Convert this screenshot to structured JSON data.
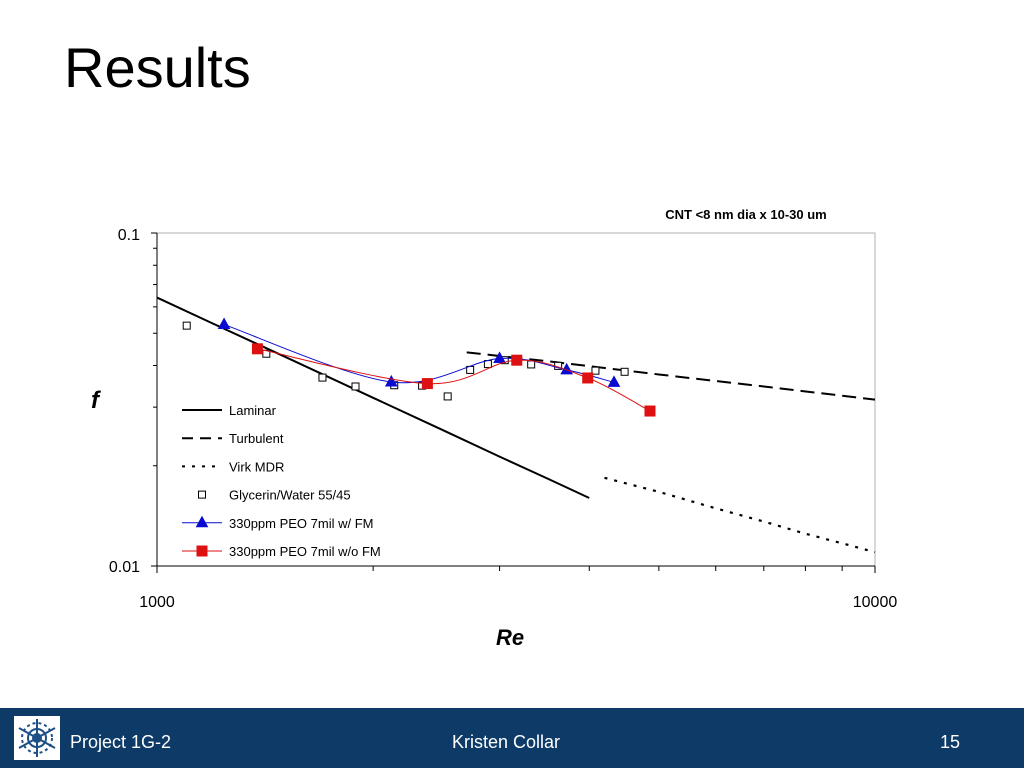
{
  "slide": {
    "title": "Results"
  },
  "chart_data": {
    "type": "scatter",
    "title": "CNT <8 nm dia x 10-30 um",
    "xlabel": "Re",
    "ylabel": "f",
    "x_scale": "log",
    "y_scale": "log",
    "xlim": [
      1000,
      10000
    ],
    "ylim": [
      0.01,
      0.1
    ],
    "x_ticks": [
      "1000",
      "10000"
    ],
    "y_ticks": [
      "0.1",
      "0.01"
    ],
    "grid": false,
    "legend_position": "inside-left",
    "series": [
      {
        "name": "Laminar",
        "style": "solid-line",
        "color": "#000000",
        "x": [
          1000,
          1200,
          1500,
          2000,
          2500,
          3000,
          3500,
          4000
        ],
        "y": [
          0.064,
          0.0533,
          0.0427,
          0.032,
          0.0256,
          0.0213,
          0.0183,
          0.016
        ]
      },
      {
        "name": "Turbulent",
        "style": "dashed-line",
        "color": "#000000",
        "x": [
          2700,
          3500,
          5000,
          7000,
          10000
        ],
        "y": [
          0.0438,
          0.0412,
          0.0376,
          0.0346,
          0.0316
        ]
      },
      {
        "name": "Virk MDR",
        "style": "dotted-line",
        "color": "#000000",
        "x": [
          4200,
          5000,
          6000,
          7000,
          8000,
          9000,
          10000
        ],
        "y": [
          0.0184,
          0.0167,
          0.0149,
          0.0136,
          0.0125,
          0.0117,
          0.011
        ]
      },
      {
        "name": "Glycerin/Water 55/45",
        "style": "open-square",
        "color": "#000000",
        "x": [
          1100,
          1420,
          1700,
          1890,
          2140,
          2340,
          2540,
          2730,
          2890,
          3050,
          3320,
          3620,
          4080,
          4480
        ],
        "y": [
          0.0527,
          0.0434,
          0.0368,
          0.0346,
          0.0349,
          0.0348,
          0.0323,
          0.0388,
          0.0404,
          0.0415,
          0.0403,
          0.0399,
          0.0386,
          0.0383
        ]
      },
      {
        "name": "330ppm PEO 7mil w/ FM",
        "style": "triangle-line",
        "color": "#0a0ad0",
        "x": [
          1240,
          2120,
          3000,
          3720,
          4330
        ],
        "y": [
          0.0531,
          0.0357,
          0.042,
          0.0388,
          0.0356
        ]
      },
      {
        "name": "330ppm PEO 7mil w/o FM",
        "style": "square-line",
        "color": "#dd1111",
        "x": [
          1380,
          2380,
          3170,
          3980,
          4860
        ],
        "y": [
          0.0449,
          0.0353,
          0.0415,
          0.0367,
          0.0292
        ]
      }
    ]
  },
  "footer": {
    "project": "Project 1G-2",
    "author": "Kristen Collar",
    "page": "15"
  },
  "colors": {
    "footer_bg": "#0d3a66",
    "blue_series": "#0a0ad0",
    "red_series": "#dd1111"
  }
}
